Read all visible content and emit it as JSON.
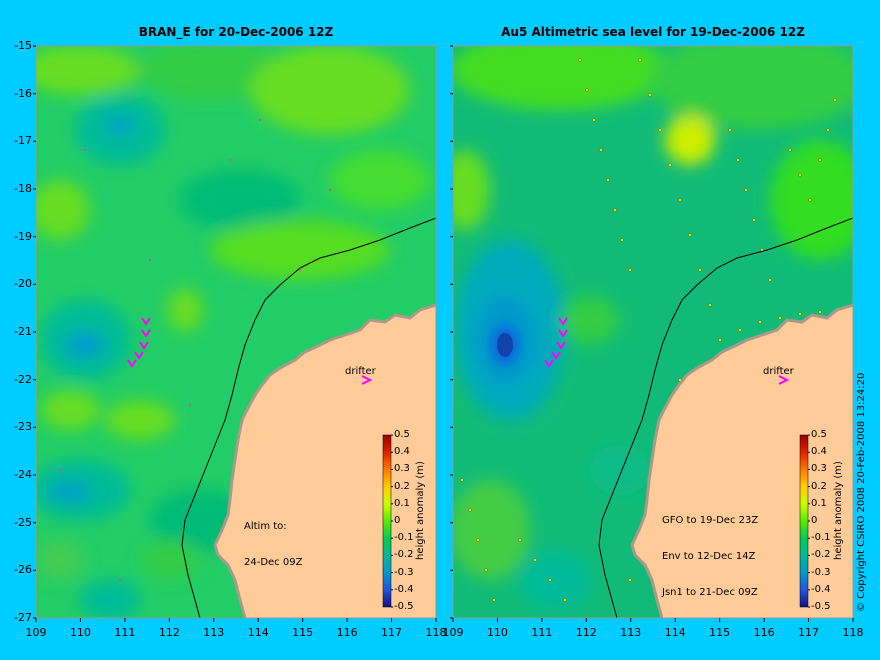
{
  "panels": [
    {
      "title": "BRAN_E for 20-Dec-2006 12Z",
      "annotation": [
        "Altim to:",
        "24-Dec 09Z"
      ],
      "drifter_label": "drifter"
    },
    {
      "title": "Au5 Altimetric sea level  for 19-Dec-2006 12Z",
      "annotation": [
        "GFO to 19-Dec 23Z",
        "Env to 12-Dec 14Z",
        "Jsn1 to 21-Dec 09Z"
      ],
      "drifter_label": "drifter"
    }
  ],
  "axes": {
    "y_ticks": [
      "-15",
      "-16",
      "-17",
      "-18",
      "-19",
      "-20",
      "-21",
      "-22",
      "-23",
      "-24",
      "-25",
      "-26",
      "-27"
    ],
    "x_ticks": [
      "109",
      "110",
      "111",
      "112",
      "113",
      "114",
      "115",
      "116",
      "117",
      "118"
    ]
  },
  "colorbar": {
    "label": "height anomaly (m)",
    "ticks": [
      "0.5",
      "0.4",
      "0.3",
      "0.2",
      "0.1",
      "0",
      "-0.1",
      "-0.2",
      "-0.3",
      "-0.4",
      "-0.5"
    ],
    "colors": [
      "#990000",
      "#dd2200",
      "#ff7700",
      "#ffcc00",
      "#ccff00",
      "#55ee00",
      "#00cc55",
      "#00bb99",
      "#0099cc",
      "#2255dd",
      "#111188"
    ]
  },
  "copyright": "© Copyright CSIRO 2008   20-Feb-2008 13:24:20",
  "colors": {
    "background": "#00ccff",
    "land": "#ffcc99",
    "drifter": "#ff00ff"
  }
}
